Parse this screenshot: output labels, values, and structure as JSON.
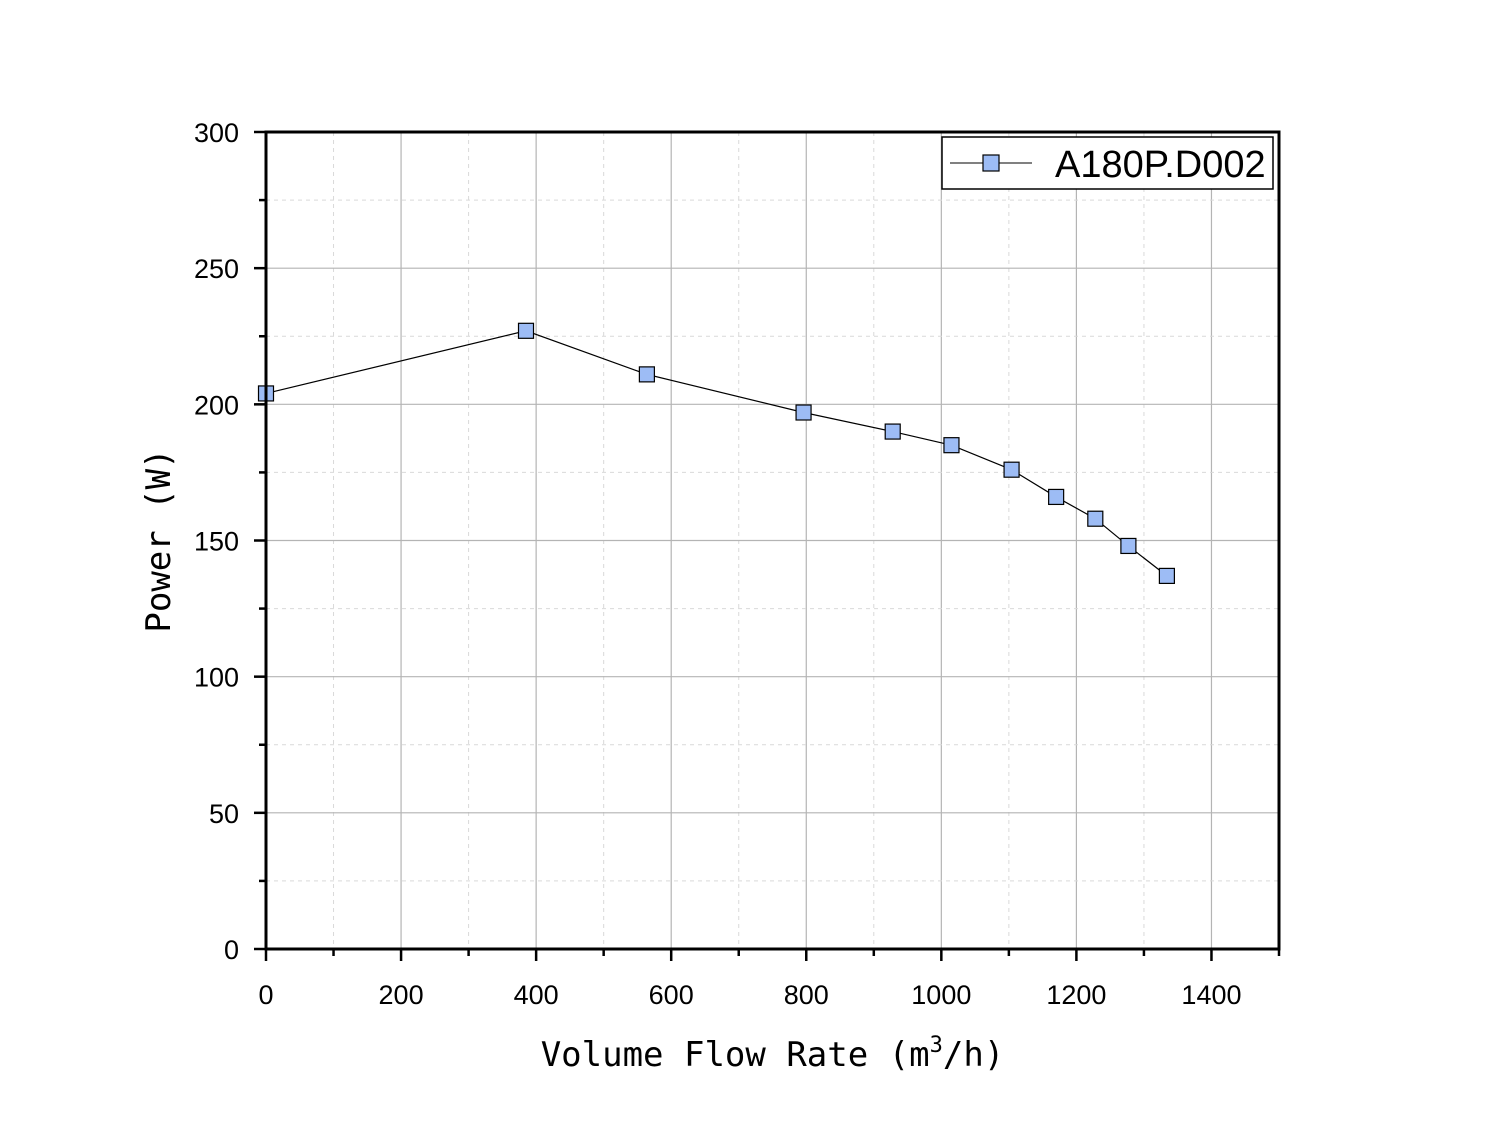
{
  "chart_data": {
    "type": "line",
    "title": "",
    "xlabel": {
      "prefix": "Volume Flow Rate (m",
      "superscript": "3",
      "suffix": "/h)"
    },
    "ylabel": "Power (W)",
    "xlim": [
      0,
      1500
    ],
    "ylim": [
      0,
      300
    ],
    "x_ticks": [
      0,
      200,
      400,
      600,
      800,
      1000,
      1200,
      1400
    ],
    "y_ticks": [
      0,
      50,
      100,
      150,
      200,
      250,
      300
    ],
    "grid": true,
    "legend_position": "top-right",
    "series": [
      {
        "name": "A180P.D002",
        "marker": "square",
        "marker_color": "#9dbcf5",
        "line_color": "#000000",
        "x": [
          0,
          385,
          564,
          796,
          928,
          1015,
          1104,
          1170,
          1228,
          1277,
          1334
        ],
        "y": [
          204,
          227,
          211,
          197,
          190,
          185,
          176,
          166,
          158,
          148,
          137
        ]
      }
    ]
  }
}
